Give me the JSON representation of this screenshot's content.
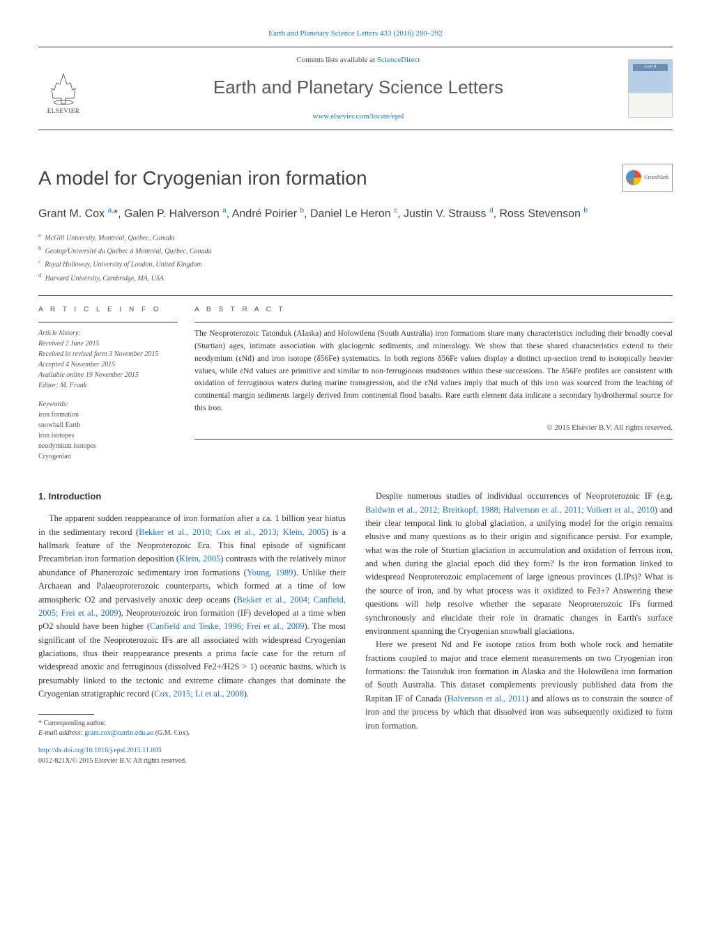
{
  "journal_ref": {
    "text": "Earth and Planetary Science Letters 433 (2016) 280–292",
    "link_text": "Earth and Planetary Science Letters 433 (2016) 280–292"
  },
  "header": {
    "contents_prefix": "Contents lists available at ",
    "contents_link": "ScienceDirect",
    "journal_title": "Earth and Planetary Science Letters",
    "homepage": "www.elsevier.com/locate/epsl",
    "elsevier_label": "ELSEVIER",
    "cover_label": "EARTH"
  },
  "crossmark_label": "CrossMark",
  "article": {
    "title": "A model for Cryogenian iron formation",
    "authors_html": "Grant M. Cox <sup>a,</sup>*, Galen P. Halverson <sup>a</sup>, André Poirier <sup>b</sup>, Daniel Le Heron <sup>c</sup>, Justin V. Strauss <sup>d</sup>, Ross Stevenson <sup>b</sup>",
    "affiliations": [
      {
        "sup": "a",
        "text": "McGill University, Montréal, Québec, Canada"
      },
      {
        "sup": "b",
        "text": "Geotop/Université du Québec à Montréal, Québec, Canada"
      },
      {
        "sup": "c",
        "text": "Royal Holloway, University of London, United Kingdom"
      },
      {
        "sup": "d",
        "text": "Harvard University, Cambridge, MA, USA"
      }
    ]
  },
  "info": {
    "heading": "a r t i c l e   i n f o",
    "history_label": "Article history:",
    "history": [
      "Received 2 June 2015",
      "Received in revised form 3 November 2015",
      "Accepted 4 November 2015",
      "Available online 19 November 2015",
      "Editor: M. Frank"
    ],
    "keywords_label": "Keywords:",
    "keywords": [
      "iron formation",
      "snowball Earth",
      "iron isotopes",
      "neodymium isotopes",
      "Cryogenian"
    ]
  },
  "abstract": {
    "heading": "a b s t r a c t",
    "text": "The Neoproterozoic Tatonduk (Alaska) and Holowilena (South Australia) iron formations share many characteristics including their broadly coeval (Sturtian) ages, intimate association with glaciogenic sediments, and mineralogy. We show that these shared characteristics extend to their neodymium (εNd) and iron isotope (δ56Fe) systematics. In both regions δ56Fe values display a distinct up-section trend to isotopically heavier values, while εNd values are primitive and similar to non-ferruginous mudstones within these successions. The δ56Fe profiles are consistent with oxidation of ferruginous waters during marine transgression, and the εNd values imply that much of this iron was sourced from the leaching of continental margin sediments largely derived from continental flood basalts. Rare earth element data indicate a secondary hydrothermal source for this iron.",
    "copyright": "© 2015 Elsevier B.V. All rights reserved."
  },
  "section1": {
    "heading": "1. Introduction",
    "p1_pre": "The apparent sudden reappearance of iron formation after a ca. 1 billion year hiatus in the sedimentary record (",
    "p1_ref1": "Bekker et al., 2010; Cox et al., 2013; Klein, 2005",
    "p1_mid1": ") is a hallmark feature of the Neoproterozoic Era. This final episode of significant Precambrian iron formation deposition (",
    "p1_ref2": "Klein, 2005",
    "p1_mid2": ") contrasts with the relatively minor abundance of Phanerozoic sedimentary iron formations (",
    "p1_ref3": "Young, 1989",
    "p1_mid3": "). Unlike their Archaean and Palaeoproterozoic counterparts, which formed at a time of low atmospheric O2 and pervasively anoxic deep oceans (",
    "p1_ref4": "Bekker et al., 2004; Canfield, 2005; Frei et al., 2009",
    "p1_mid4": "), Neoproterozoic iron formation (IF) developed at a time when pO2 should have been higher (",
    "p1_ref5": "Canfield and Teske, 1996; Frei et al., 2009",
    "p1_mid5": "). The most significant of the Neoproterozoic IFs are all associated with widespread Cryogenian glaciations, thus their reappearance presents a prima facie case for the return of widespread anoxic and ferruginous (dissolved Fe2+/H2S > 1) oceanic basins, which is presumably linked to the tectonic and extreme climate changes that dominate the Cryogenian stratigraphic record (",
    "p1_ref6": "Cox, 2015; Li et al., 2008",
    "p1_end": ").",
    "p2_pre": "Despite numerous studies of individual occurrences of Neoproterozoic IF (e.g. ",
    "p2_ref1": "Baldwin et al., 2012; Breitkopf, 1988; Halverson et al., 2011; Volkert et al., 2010",
    "p2_end": ") and their clear temporal link to global glaciation, a unifying model for the origin remains elusive and many questions as to their origin and significance persist. For example, what was the role of Sturtian glaciation in accumulation and oxidation of ferrous iron, and when during the glacial epoch did they form? Is the iron formation linked to widespread Neoproterozoic emplacement of large igneous provinces (LIPs)? What is the source of iron, and by what process was it oxidized to Fe3+? Answering these questions will help resolve whether the separate Neoproterozoic IFs formed synchronously and elucidate their role in dramatic changes in Earth's surface environment spanning the Cryogenian snowball glaciations.",
    "p3_pre": "Here we present Nd and Fe isotope ratios from both whole rock and hematite fractions coupled to major and trace element measurements on two Cryogenian iron formations: the Tatonduk iron formation in Alaska and the Holowilena iron formation of South Australia. This dataset complements previously published data from the Rapitan IF of Canada (",
    "p3_ref1": "Halverson et al., 2011",
    "p3_end": ") and allows us to constrain the source of iron and the process by which that dissolved iron was subsequently oxidized to form iron formation."
  },
  "footnotes": {
    "corresponding": "* Corresponding author.",
    "email_label": "E-mail address: ",
    "email": "grant.cox@curtin.edu.au",
    "email_suffix": " (G.M. Cox)."
  },
  "doi": {
    "url": "http://dx.doi.org/10.1016/j.epsl.2015.11.003",
    "issn_line": "0012-821X/© 2015 Elsevier B.V. All rights reserved."
  },
  "colors": {
    "link": "#1a73c7",
    "text": "#333333",
    "heading_gray": "#5a5a5a"
  }
}
